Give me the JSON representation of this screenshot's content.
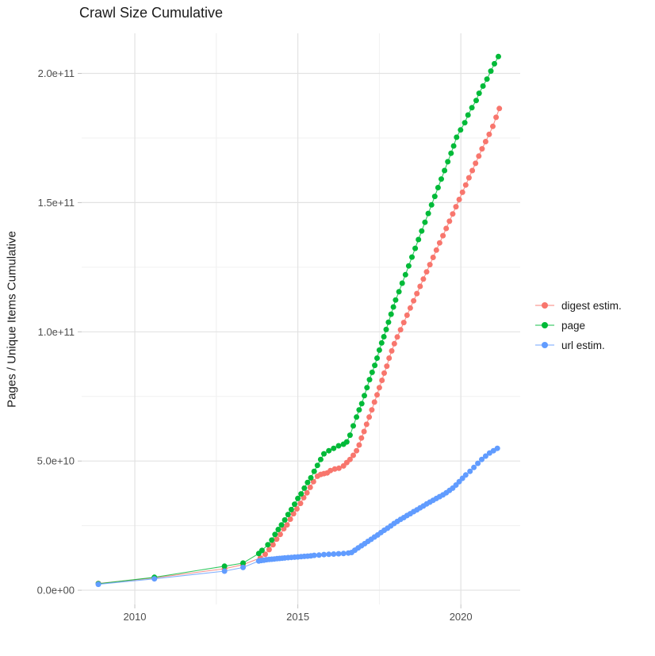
{
  "chart_data": {
    "type": "scatter",
    "title": "Crawl Size Cumulative",
    "xlabel": "",
    "ylabel": "Pages / Unique Items Cumulative",
    "legend_position": "right",
    "grid": "major and minor gridlines, light gray on white panel",
    "x_unit": "calendar year (decimal)",
    "value_scale_note": "series point values are in units of 1e9 (billions); y axis shows scientific notation",
    "xlim": [
      2008.37,
      2021.82
    ],
    "ylim_e9": [
      -5.5,
      215.5
    ],
    "x_ticks": [
      {
        "v": 2010,
        "label": "2010"
      },
      {
        "v": 2015,
        "label": "2015"
      },
      {
        "v": 2020,
        "label": "2020"
      }
    ],
    "x_minor": [
      2012.5,
      2017.5
    ],
    "y_ticks": [
      {
        "v": 0,
        "label": "0.0e+00"
      },
      {
        "v": 50,
        "label": "5.0e+10"
      },
      {
        "v": 100,
        "label": "1.0e+11"
      },
      {
        "v": 150,
        "label": "1.5e+11"
      },
      {
        "v": 200,
        "label": "2.0e+11"
      }
    ],
    "y_minor": [
      25,
      75,
      125,
      175
    ],
    "series": [
      {
        "name": "digest estim.",
        "color": "#F8766D",
        "points_year_value_e9": [
          [
            2008.88,
            2.6
          ],
          [
            2010.6,
            4.8
          ],
          [
            2012.75,
            8.3
          ],
          [
            2013.32,
            9.9
          ],
          [
            2013.85,
            12.5
          ],
          [
            2014.0,
            13.9
          ],
          [
            2014.12,
            15.7
          ],
          [
            2014.24,
            17.6
          ],
          [
            2014.35,
            19.8
          ],
          [
            2014.46,
            21.6
          ],
          [
            2014.57,
            23.8
          ],
          [
            2014.67,
            25.3
          ],
          [
            2014.77,
            27.5
          ],
          [
            2014.87,
            29.6
          ],
          [
            2014.97,
            31.5
          ],
          [
            2015.08,
            33.6
          ],
          [
            2015.18,
            35.8
          ],
          [
            2015.28,
            37.7
          ],
          [
            2015.38,
            39.8
          ],
          [
            2015.48,
            42.0
          ],
          [
            2015.6,
            44.1
          ],
          [
            2015.7,
            44.8
          ],
          [
            2015.8,
            45.1
          ],
          [
            2015.9,
            45.4
          ],
          [
            2016.0,
            46.3
          ],
          [
            2016.13,
            46.9
          ],
          [
            2016.26,
            47.2
          ],
          [
            2016.4,
            48.1
          ],
          [
            2016.5,
            49.4
          ],
          [
            2016.6,
            50.6
          ],
          [
            2016.7,
            52.2
          ],
          [
            2016.8,
            54.0
          ],
          [
            2016.88,
            56.2
          ],
          [
            2016.95,
            58.9
          ],
          [
            2017.03,
            61.4
          ],
          [
            2017.11,
            64.2
          ],
          [
            2017.19,
            67.0
          ],
          [
            2017.27,
            69.8
          ],
          [
            2017.35,
            72.8
          ],
          [
            2017.43,
            75.6
          ],
          [
            2017.5,
            78.4
          ],
          [
            2017.58,
            81.2
          ],
          [
            2017.65,
            84.0
          ],
          [
            2017.73,
            86.7
          ],
          [
            2017.8,
            89.8
          ],
          [
            2017.88,
            92.6
          ],
          [
            2017.96,
            95.4
          ],
          [
            2018.05,
            98.0
          ],
          [
            2018.15,
            100.8
          ],
          [
            2018.25,
            103.6
          ],
          [
            2018.35,
            106.4
          ],
          [
            2018.45,
            109.2
          ],
          [
            2018.55,
            112.0
          ],
          [
            2018.65,
            114.8
          ],
          [
            2018.75,
            117.6
          ],
          [
            2018.85,
            120.4
          ],
          [
            2018.95,
            123.2
          ],
          [
            2019.05,
            126.0
          ],
          [
            2019.15,
            128.8
          ],
          [
            2019.25,
            131.6
          ],
          [
            2019.35,
            134.4
          ],
          [
            2019.45,
            137.2
          ],
          [
            2019.55,
            140.0
          ],
          [
            2019.65,
            142.8
          ],
          [
            2019.75,
            145.6
          ],
          [
            2019.85,
            148.4
          ],
          [
            2019.95,
            151.2
          ],
          [
            2020.05,
            154.0
          ],
          [
            2020.15,
            156.8
          ],
          [
            2020.25,
            159.6
          ],
          [
            2020.35,
            162.4
          ],
          [
            2020.45,
            165.2
          ],
          [
            2020.55,
            168.0
          ],
          [
            2020.65,
            170.8
          ],
          [
            2020.76,
            173.6
          ],
          [
            2020.87,
            176.4
          ],
          [
            2020.98,
            179.5
          ],
          [
            2021.08,
            183.0
          ],
          [
            2021.18,
            186.4
          ]
        ]
      },
      {
        "name": "page",
        "color": "#00BA38",
        "points_year_value_e9": [
          [
            2008.88,
            2.5
          ],
          [
            2010.6,
            5.0
          ],
          [
            2012.75,
            9.3
          ],
          [
            2013.32,
            10.5
          ],
          [
            2013.8,
            14.2
          ],
          [
            2013.9,
            15.4
          ],
          [
            2014.08,
            17.6
          ],
          [
            2014.2,
            19.4
          ],
          [
            2014.3,
            21.6
          ],
          [
            2014.4,
            23.5
          ],
          [
            2014.5,
            25.3
          ],
          [
            2014.6,
            27.2
          ],
          [
            2014.7,
            29.3
          ],
          [
            2014.8,
            31.2
          ],
          [
            2014.9,
            33.3
          ],
          [
            2015.0,
            35.5
          ],
          [
            2015.1,
            37.3
          ],
          [
            2015.2,
            39.5
          ],
          [
            2015.3,
            41.7
          ],
          [
            2015.4,
            43.5
          ],
          [
            2015.5,
            46.0
          ],
          [
            2015.6,
            48.3
          ],
          [
            2015.7,
            50.6
          ],
          [
            2015.8,
            52.8
          ],
          [
            2015.95,
            54.0
          ],
          [
            2016.1,
            54.9
          ],
          [
            2016.25,
            55.9
          ],
          [
            2016.4,
            56.5
          ],
          [
            2016.5,
            57.4
          ],
          [
            2016.6,
            60.0
          ],
          [
            2016.7,
            63.6
          ],
          [
            2016.8,
            67.0
          ],
          [
            2016.88,
            69.8
          ],
          [
            2016.96,
            72.2
          ],
          [
            2017.04,
            75.3
          ],
          [
            2017.12,
            78.4
          ],
          [
            2017.2,
            81.5
          ],
          [
            2017.28,
            84.3
          ],
          [
            2017.36,
            87.0
          ],
          [
            2017.43,
            89.8
          ],
          [
            2017.5,
            92.9
          ],
          [
            2017.57,
            95.7
          ],
          [
            2017.64,
            98.1
          ],
          [
            2017.71,
            100.9
          ],
          [
            2017.78,
            103.7
          ],
          [
            2017.86,
            106.8
          ],
          [
            2017.93,
            109.6
          ],
          [
            2018.0,
            112.3
          ],
          [
            2018.1,
            115.5
          ],
          [
            2018.2,
            118.8
          ],
          [
            2018.3,
            122.1
          ],
          [
            2018.4,
            125.5
          ],
          [
            2018.5,
            128.9
          ],
          [
            2018.6,
            132.3
          ],
          [
            2018.7,
            135.7
          ],
          [
            2018.8,
            139.0
          ],
          [
            2018.9,
            142.4
          ],
          [
            2019.0,
            145.8
          ],
          [
            2019.1,
            149.1
          ],
          [
            2019.2,
            152.4
          ],
          [
            2019.3,
            155.8
          ],
          [
            2019.4,
            159.1
          ],
          [
            2019.5,
            162.4
          ],
          [
            2019.6,
            165.8
          ],
          [
            2019.7,
            169.1
          ],
          [
            2019.78,
            171.9
          ],
          [
            2019.87,
            175.3
          ],
          [
            2019.99,
            178.1
          ],
          [
            2020.12,
            180.9
          ],
          [
            2020.22,
            183.9
          ],
          [
            2020.34,
            186.7
          ],
          [
            2020.47,
            189.5
          ],
          [
            2020.56,
            192.3
          ],
          [
            2020.68,
            195.1
          ],
          [
            2020.8,
            197.8
          ],
          [
            2020.92,
            200.9
          ],
          [
            2021.03,
            203.7
          ],
          [
            2021.15,
            206.5
          ]
        ]
      },
      {
        "name": "url estim.",
        "color": "#619CFF",
        "points_year_value_e9": [
          [
            2008.88,
            2.3
          ],
          [
            2010.6,
            4.4
          ],
          [
            2012.75,
            7.4
          ],
          [
            2013.32,
            8.8
          ],
          [
            2013.8,
            11.3
          ],
          [
            2013.88,
            11.5
          ],
          [
            2013.96,
            11.6
          ],
          [
            2014.04,
            11.8
          ],
          [
            2014.12,
            11.9
          ],
          [
            2014.2,
            12.0
          ],
          [
            2014.28,
            12.1
          ],
          [
            2014.36,
            12.2
          ],
          [
            2014.44,
            12.3
          ],
          [
            2014.52,
            12.4
          ],
          [
            2014.6,
            12.5
          ],
          [
            2014.7,
            12.6
          ],
          [
            2014.8,
            12.7
          ],
          [
            2014.9,
            12.8
          ],
          [
            2015.0,
            12.9
          ],
          [
            2015.1,
            13.0
          ],
          [
            2015.2,
            13.1
          ],
          [
            2015.3,
            13.2
          ],
          [
            2015.4,
            13.3
          ],
          [
            2015.5,
            13.5
          ],
          [
            2015.65,
            13.6
          ],
          [
            2015.8,
            13.8
          ],
          [
            2015.95,
            13.9
          ],
          [
            2016.1,
            14.0
          ],
          [
            2016.25,
            14.1
          ],
          [
            2016.4,
            14.2
          ],
          [
            2016.55,
            14.4
          ],
          [
            2016.65,
            14.6
          ],
          [
            2016.75,
            15.5
          ],
          [
            2016.85,
            16.4
          ],
          [
            2016.95,
            17.2
          ],
          [
            2017.05,
            18.0
          ],
          [
            2017.15,
            18.9
          ],
          [
            2017.25,
            19.7
          ],
          [
            2017.35,
            20.6
          ],
          [
            2017.45,
            21.4
          ],
          [
            2017.55,
            22.3
          ],
          [
            2017.65,
            23.2
          ],
          [
            2017.75,
            24.0
          ],
          [
            2017.85,
            24.9
          ],
          [
            2017.95,
            25.8
          ],
          [
            2018.05,
            26.6
          ],
          [
            2018.15,
            27.4
          ],
          [
            2018.25,
            28.1
          ],
          [
            2018.35,
            28.9
          ],
          [
            2018.45,
            29.6
          ],
          [
            2018.55,
            30.4
          ],
          [
            2018.65,
            31.1
          ],
          [
            2018.75,
            31.9
          ],
          [
            2018.85,
            32.6
          ],
          [
            2018.95,
            33.4
          ],
          [
            2019.05,
            34.1
          ],
          [
            2019.15,
            34.8
          ],
          [
            2019.25,
            35.5
          ],
          [
            2019.35,
            36.2
          ],
          [
            2019.45,
            36.9
          ],
          [
            2019.55,
            37.7
          ],
          [
            2019.65,
            38.6
          ],
          [
            2019.75,
            39.5
          ],
          [
            2019.85,
            40.7
          ],
          [
            2019.95,
            42.0
          ],
          [
            2020.05,
            43.3
          ],
          [
            2020.15,
            44.6
          ],
          [
            2020.28,
            46.0
          ],
          [
            2020.4,
            47.5
          ],
          [
            2020.52,
            49.1
          ],
          [
            2020.64,
            50.6
          ],
          [
            2020.76,
            51.9
          ],
          [
            2020.88,
            53.1
          ],
          [
            2021.0,
            54.0
          ],
          [
            2021.12,
            54.9
          ]
        ]
      }
    ]
  },
  "colors": {
    "background": "#ffffff",
    "grid_major": "#e2e2e2",
    "grid_minor": "#f0f0f0",
    "tick_mark": "#c2c2c2",
    "tick_text": "#4d4d4d",
    "text": "#1a1a1a"
  }
}
